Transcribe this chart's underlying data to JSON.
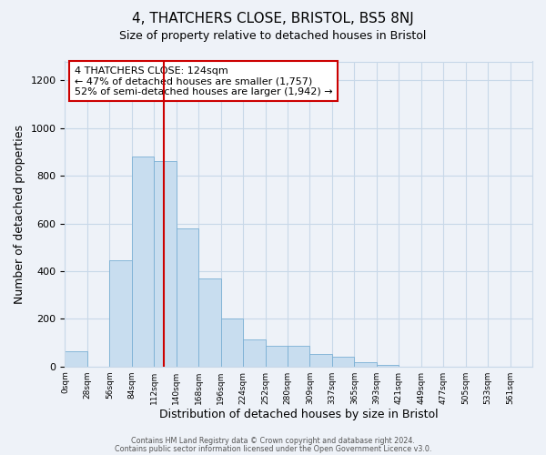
{
  "title": "4, THATCHERS CLOSE, BRISTOL, BS5 8NJ",
  "subtitle": "Size of property relative to detached houses in Bristol",
  "xlabel": "Distribution of detached houses by size in Bristol",
  "ylabel": "Number of detached properties",
  "bar_labels": [
    "0sqm",
    "28sqm",
    "56sqm",
    "84sqm",
    "112sqm",
    "140sqm",
    "168sqm",
    "196sqm",
    "224sqm",
    "252sqm",
    "280sqm",
    "309sqm",
    "337sqm",
    "365sqm",
    "393sqm",
    "421sqm",
    "449sqm",
    "477sqm",
    "505sqm",
    "533sqm",
    "561sqm"
  ],
  "bar_heights": [
    65,
    0,
    445,
    880,
    860,
    580,
    370,
    200,
    115,
    88,
    88,
    52,
    42,
    18,
    8,
    0,
    0,
    0,
    0,
    0,
    0
  ],
  "bar_color": "#c8ddef",
  "bar_edge_color": "#7aafd4",
  "grid_color": "#c8d8e8",
  "bg_color": "#eef2f8",
  "ylim": [
    0,
    1280
  ],
  "yticks": [
    0,
    200,
    400,
    600,
    800,
    1000,
    1200
  ],
  "property_sqm": 124,
  "bin_size": 28,
  "property_line_color": "#cc0000",
  "annotation_box_line1": "4 THATCHERS CLOSE: 124sqm",
  "annotation_box_line2": "← 47% of detached houses are smaller (1,757)",
  "annotation_box_line3": "52% of semi-detached houses are larger (1,942) →",
  "annotation_box_color": "#cc0000",
  "footer1": "Contains HM Land Registry data © Crown copyright and database right 2024.",
  "footer2": "Contains public sector information licensed under the Open Government Licence v3.0."
}
